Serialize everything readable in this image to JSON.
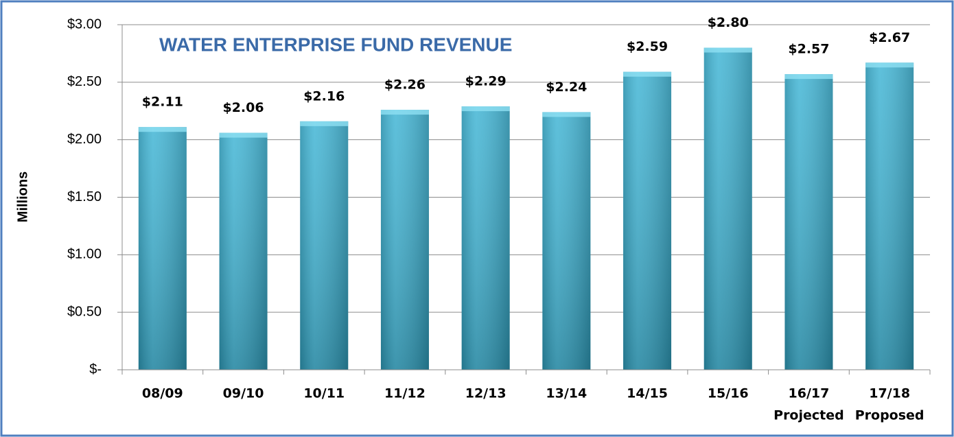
{
  "chart_data": {
    "type": "bar",
    "title": "WATER ENTERPRISE FUND REVENUE",
    "y_label": "Millions",
    "categories": [
      [
        "08/09"
      ],
      [
        "09/10"
      ],
      [
        "10/11"
      ],
      [
        "11/12"
      ],
      [
        "12/13"
      ],
      [
        "13/14"
      ],
      [
        "14/15"
      ],
      [
        "15/16"
      ],
      [
        "16/17",
        "Projected"
      ],
      [
        "17/18",
        "Proposed"
      ]
    ],
    "values": [
      2.11,
      2.06,
      2.16,
      2.26,
      2.29,
      2.24,
      2.59,
      2.8,
      2.57,
      2.67
    ],
    "value_labels": [
      "$2.11",
      "$2.06",
      "$2.16",
      "$2.26",
      "$2.29",
      "$2.24",
      "$2.59",
      "$2.80",
      "$2.57",
      "$2.67"
    ],
    "color": "#34b0d2",
    "ylim": [
      0,
      3
    ],
    "yticks": [
      {
        "value": 0,
        "label": "$-"
      },
      {
        "value": 0.5,
        "label": "$0.50"
      },
      {
        "value": 1,
        "label": "$1.00"
      },
      {
        "value": 1.5,
        "label": "$1.50"
      },
      {
        "value": 2,
        "label": "$2.00"
      },
      {
        "value": 2.5,
        "label": "$2.50"
      },
      {
        "value": 3,
        "label": "$3.00"
      }
    ],
    "grid": true
  }
}
